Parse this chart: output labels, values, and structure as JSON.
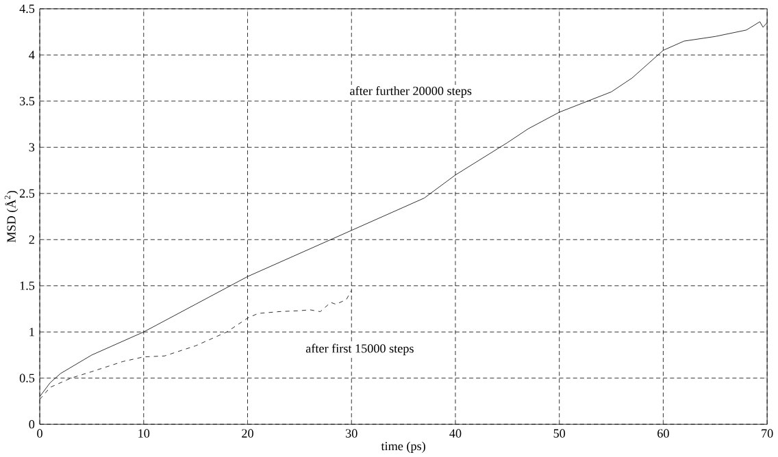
{
  "chart_data": {
    "type": "line",
    "xlabel": "time (ps)",
    "ylabel": "MSD (Å$^{2}$)",
    "xlim": [
      0,
      70
    ],
    "ylim": [
      0,
      4.5
    ],
    "xticks": [
      0,
      10,
      20,
      30,
      40,
      50,
      60,
      70
    ],
    "yticks": [
      0,
      0.5,
      1,
      1.5,
      2,
      2.5,
      3,
      3.5,
      4,
      4.5
    ],
    "grid": true,
    "marker": "none",
    "series": [
      {
        "color": "#000000",
        "line_style": "solid",
        "x": [
          0,
          1,
          2,
          5,
          10,
          15,
          20,
          25,
          30,
          35,
          37,
          40,
          45,
          47,
          50,
          55,
          57,
          60,
          62,
          65,
          68,
          69.3,
          69.6,
          70
        ],
        "values": [
          0.3,
          0.45,
          0.55,
          0.75,
          1.0,
          1.3,
          1.6,
          1.85,
          2.1,
          2.35,
          2.45,
          2.7,
          3.05,
          3.2,
          3.38,
          3.6,
          3.75,
          4.05,
          4.15,
          4.2,
          4.27,
          4.36,
          4.3,
          4.35
        ]
      },
      {
        "color": "#000000",
        "line_style": "dashed",
        "x": [
          0,
          1,
          3,
          5,
          8,
          10,
          12,
          15,
          18,
          20,
          21,
          23,
          25,
          26,
          27,
          28,
          28.5,
          29.5,
          30
        ],
        "values": [
          0.27,
          0.4,
          0.5,
          0.57,
          0.68,
          0.73,
          0.74,
          0.85,
          1.0,
          1.15,
          1.2,
          1.22,
          1.23,
          1.24,
          1.22,
          1.32,
          1.3,
          1.35,
          1.45
        ]
      }
    ],
    "annotations": [
      "after further 20000 steps",
      "after first 15000 steps"
    ]
  }
}
